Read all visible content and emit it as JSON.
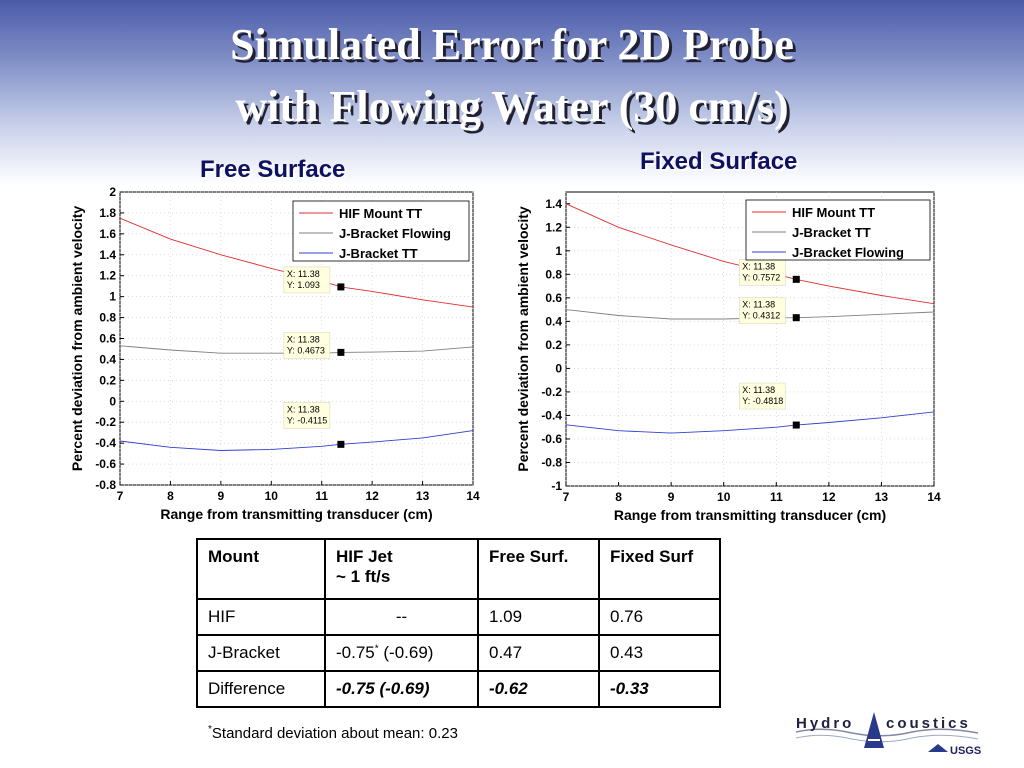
{
  "slide": {
    "title_line1": "Simulated Error for 2D Probe",
    "title_line2": "with Flowing Water (30 cm/s)"
  },
  "chart_data": [
    {
      "type": "line",
      "title": "Free Surface",
      "xlabel": "Range from transmitting transducer (cm)",
      "ylabel": "Percent deviation from ambient velocity",
      "xlim": [
        7,
        14
      ],
      "ylim": [
        -0.8,
        2
      ],
      "x_ticks": [
        "7",
        "8",
        "9",
        "10",
        "11",
        "12",
        "13",
        "14"
      ],
      "y_ticks": [
        "2",
        "1.8",
        "1.6",
        "1.4",
        "1.2",
        "1",
        "0.8",
        "0.6",
        "0.4",
        "0.2",
        "0",
        "-0.2",
        "-0.4",
        "-0.6",
        "-0.8"
      ],
      "grid": true,
      "legend_position": "top-right",
      "series": [
        {
          "name": "HIF Mount TT",
          "color": "#e03030",
          "x": [
            7,
            8,
            9,
            10,
            11,
            11.38,
            12,
            13,
            14
          ],
          "y": [
            1.75,
            1.55,
            1.4,
            1.27,
            1.15,
            1.093,
            1.05,
            0.97,
            0.9
          ]
        },
        {
          "name": "J-Bracket Flowing",
          "color": "#808080",
          "x": [
            7,
            8,
            9,
            10,
            11,
            11.38,
            12,
            13,
            14
          ],
          "y": [
            0.53,
            0.49,
            0.46,
            0.46,
            0.46,
            0.4673,
            0.47,
            0.48,
            0.52
          ]
        },
        {
          "name": "J-Bracket TT",
          "color": "#3040d0",
          "x": [
            7,
            8,
            9,
            10,
            11,
            11.38,
            12,
            13,
            14
          ],
          "y": [
            -0.38,
            -0.44,
            -0.47,
            -0.46,
            -0.43,
            -0.4115,
            -0.39,
            -0.35,
            -0.28
          ]
        }
      ],
      "datatips": [
        {
          "x": 11.38,
          "y": 1.093,
          "line1": "X: 11.38",
          "line2": "Y: 1.093"
        },
        {
          "x": 11.38,
          "y": 0.4673,
          "line1": "X: 11.38",
          "line2": "Y: 0.4673"
        },
        {
          "x": 11.38,
          "y": -0.4115,
          "line1": "X: 11.38",
          "line2": "Y: -0.4115"
        }
      ]
    },
    {
      "type": "line",
      "title": "Fixed Surface",
      "xlabel": "Range from transmitting transducer (cm)",
      "ylabel": "Percent deviation from ambient velocity",
      "xlim": [
        7,
        14
      ],
      "ylim": [
        -1,
        1.5
      ],
      "x_ticks": [
        "7",
        "8",
        "9",
        "10",
        "11",
        "12",
        "13",
        "14"
      ],
      "y_ticks": [
        "1.4",
        "1.2",
        "1",
        "0.8",
        "0.6",
        "0.4",
        "0.2",
        "0",
        "-0.2",
        "-0.4",
        "-0.6",
        "-0.8",
        "-1"
      ],
      "grid": true,
      "legend_position": "top-right",
      "series": [
        {
          "name": "HIF Mount TT",
          "color": "#e03030",
          "x": [
            7,
            8,
            9,
            10,
            11,
            11.38,
            12,
            13,
            14
          ],
          "y": [
            1.4,
            1.2,
            1.05,
            0.91,
            0.8,
            0.7572,
            0.7,
            0.62,
            0.55
          ]
        },
        {
          "name": "J-Bracket TT",
          "color": "#808080",
          "x": [
            7,
            8,
            9,
            10,
            11,
            11.38,
            12,
            13,
            14
          ],
          "y": [
            0.5,
            0.45,
            0.42,
            0.42,
            0.43,
            0.4312,
            0.44,
            0.46,
            0.48
          ]
        },
        {
          "name": "J-Bracket Flowing",
          "color": "#3040d0",
          "x": [
            7,
            8,
            9,
            10,
            11,
            11.38,
            12,
            13,
            14
          ],
          "y": [
            -0.48,
            -0.53,
            -0.55,
            -0.53,
            -0.5,
            -0.4818,
            -0.46,
            -0.42,
            -0.37
          ]
        }
      ],
      "datatips": [
        {
          "x": 11.38,
          "y": 0.7572,
          "line1": "X: 11.38",
          "line2": "Y: 0.7572"
        },
        {
          "x": 11.38,
          "y": 0.4312,
          "line1": "X: 11.38",
          "line2": "Y: 0.4312"
        },
        {
          "x": 11.38,
          "y": -0.4818,
          "line1": "X: 11.38",
          "line2": "Y: -0.4818"
        }
      ]
    }
  ],
  "table": {
    "headers": [
      "Mount",
      "HIF Jet",
      "~ 1 ft/s",
      "Free Surf.",
      "Fixed Surf"
    ],
    "rows": [
      {
        "mount": "HIF",
        "jet": "--",
        "jet_sup": "",
        "jet_after": "",
        "free": "1.09",
        "fixed": "0.76"
      },
      {
        "mount": "J-Bracket",
        "jet": "-0.75",
        "jet_sup": "*",
        "jet_after": " (-0.69)",
        "free": "0.47",
        "fixed": "0.43"
      },
      {
        "mount": "Difference",
        "jet": "-0.75 (-0.69)",
        "jet_sup": "",
        "jet_after": "",
        "free": "-0.62",
        "fixed": "-0.33"
      }
    ]
  },
  "footnote": {
    "marker": "*",
    "text": "Standard deviation about mean: 0.23"
  },
  "logo": {
    "text_left": "Hydro",
    "text_right": "coustics",
    "agency": "USGS"
  }
}
